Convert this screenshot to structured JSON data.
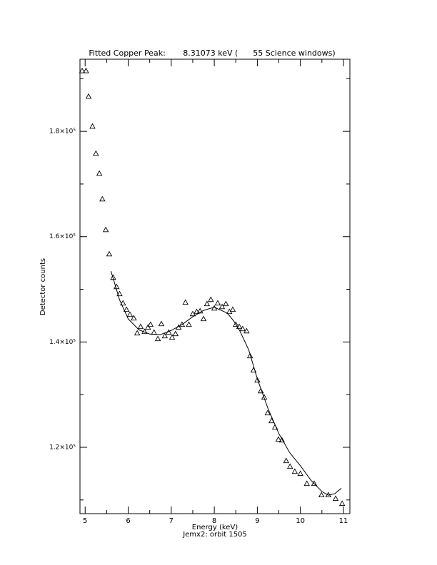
{
  "chart_data": {
    "type": "scatter",
    "title": "Fitted Copper Peak:       8.31073 keV (      55 Science windows)",
    "x_label": "Energy (keV)",
    "subtitle": "Jemx2: orbit 1505",
    "y_label": "Detector counts",
    "marker": "triangle",
    "color": "#000000",
    "x": [
      4.93,
      5.02,
      5.08,
      5.17,
      5.25,
      5.33,
      5.4,
      5.48,
      5.56,
      5.65,
      5.73,
      5.8,
      5.88,
      5.96,
      6.04,
      6.13,
      6.21,
      6.29,
      6.38,
      6.46,
      6.52,
      6.6,
      6.69,
      6.77,
      6.85,
      6.94,
      7.02,
      7.1,
      7.17,
      7.25,
      7.33,
      7.41,
      7.5,
      7.59,
      7.67,
      7.75,
      7.83,
      7.92,
      8.0,
      8.08,
      8.18,
      8.27,
      8.35,
      8.43,
      8.5,
      8.58,
      8.66,
      8.75,
      8.83,
      8.91,
      9.0,
      9.08,
      9.16,
      9.24,
      9.33,
      9.41,
      9.49,
      9.57,
      9.67,
      9.76,
      9.87,
      10.0,
      10.15,
      10.32,
      10.49,
      10.65,
      10.82,
      10.97
    ],
    "values": [
      191500,
      191500,
      186630,
      180950,
      175800,
      172010,
      167140,
      161320,
      156710,
      152250,
      150490,
      149140,
      147380,
      146160,
      145210,
      144540,
      141690,
      142910,
      141960,
      142770,
      143320,
      141830,
      140610,
      143450,
      141150,
      141830,
      140880,
      141560,
      142770,
      143320,
      147520,
      143320,
      145340,
      145750,
      145880,
      144400,
      147240,
      148050,
      146420,
      147380,
      146690,
      147240,
      145750,
      146160,
      143320,
      142910,
      142500,
      142090,
      137350,
      134640,
      132750,
      130710,
      129500,
      126520,
      125030,
      123810,
      121510,
      121370,
      117440,
      116360,
      115410,
      115010,
      113110,
      113110,
      110950,
      110950,
      110270,
      109320
    ],
    "fit_x": [
      5.6,
      5.8,
      6.0,
      6.25,
      6.5,
      6.75,
      7.0,
      7.25,
      7.5,
      7.75,
      8.0,
      8.3,
      8.45,
      8.6,
      8.8,
      9.0,
      9.25,
      9.5,
      9.75,
      10.0,
      10.25,
      10.5,
      10.65,
      10.8,
      10.95
    ],
    "fit_values": [
      153460,
      148000,
      144390,
      142300,
      141500,
      141400,
      142200,
      143300,
      144800,
      146000,
      146600,
      145500,
      144000,
      142000,
      138500,
      133000,
      127300,
      122600,
      119000,
      116500,
      113700,
      111600,
      110900,
      111200,
      112200
    ],
    "xlim": [
      4.88,
      11.15
    ],
    "ylim": [
      107400,
      193700
    ],
    "xticks": [
      5,
      6,
      7,
      8,
      9,
      10,
      11
    ],
    "x_minor_ticks": [
      5.5,
      6.5,
      7.5,
      8.5,
      9.5,
      10.5
    ],
    "yticks": [
      {
        "value": 120000,
        "label": "1.2×10⁵"
      },
      {
        "value": 140000,
        "label": "1.4×10⁵"
      },
      {
        "value": 160000,
        "label": "1.6×10⁵"
      },
      {
        "value": 180000,
        "label": "1.8×10⁵"
      }
    ],
    "y_minor_ticks": [
      110000,
      130000,
      150000,
      170000,
      190000
    ]
  }
}
